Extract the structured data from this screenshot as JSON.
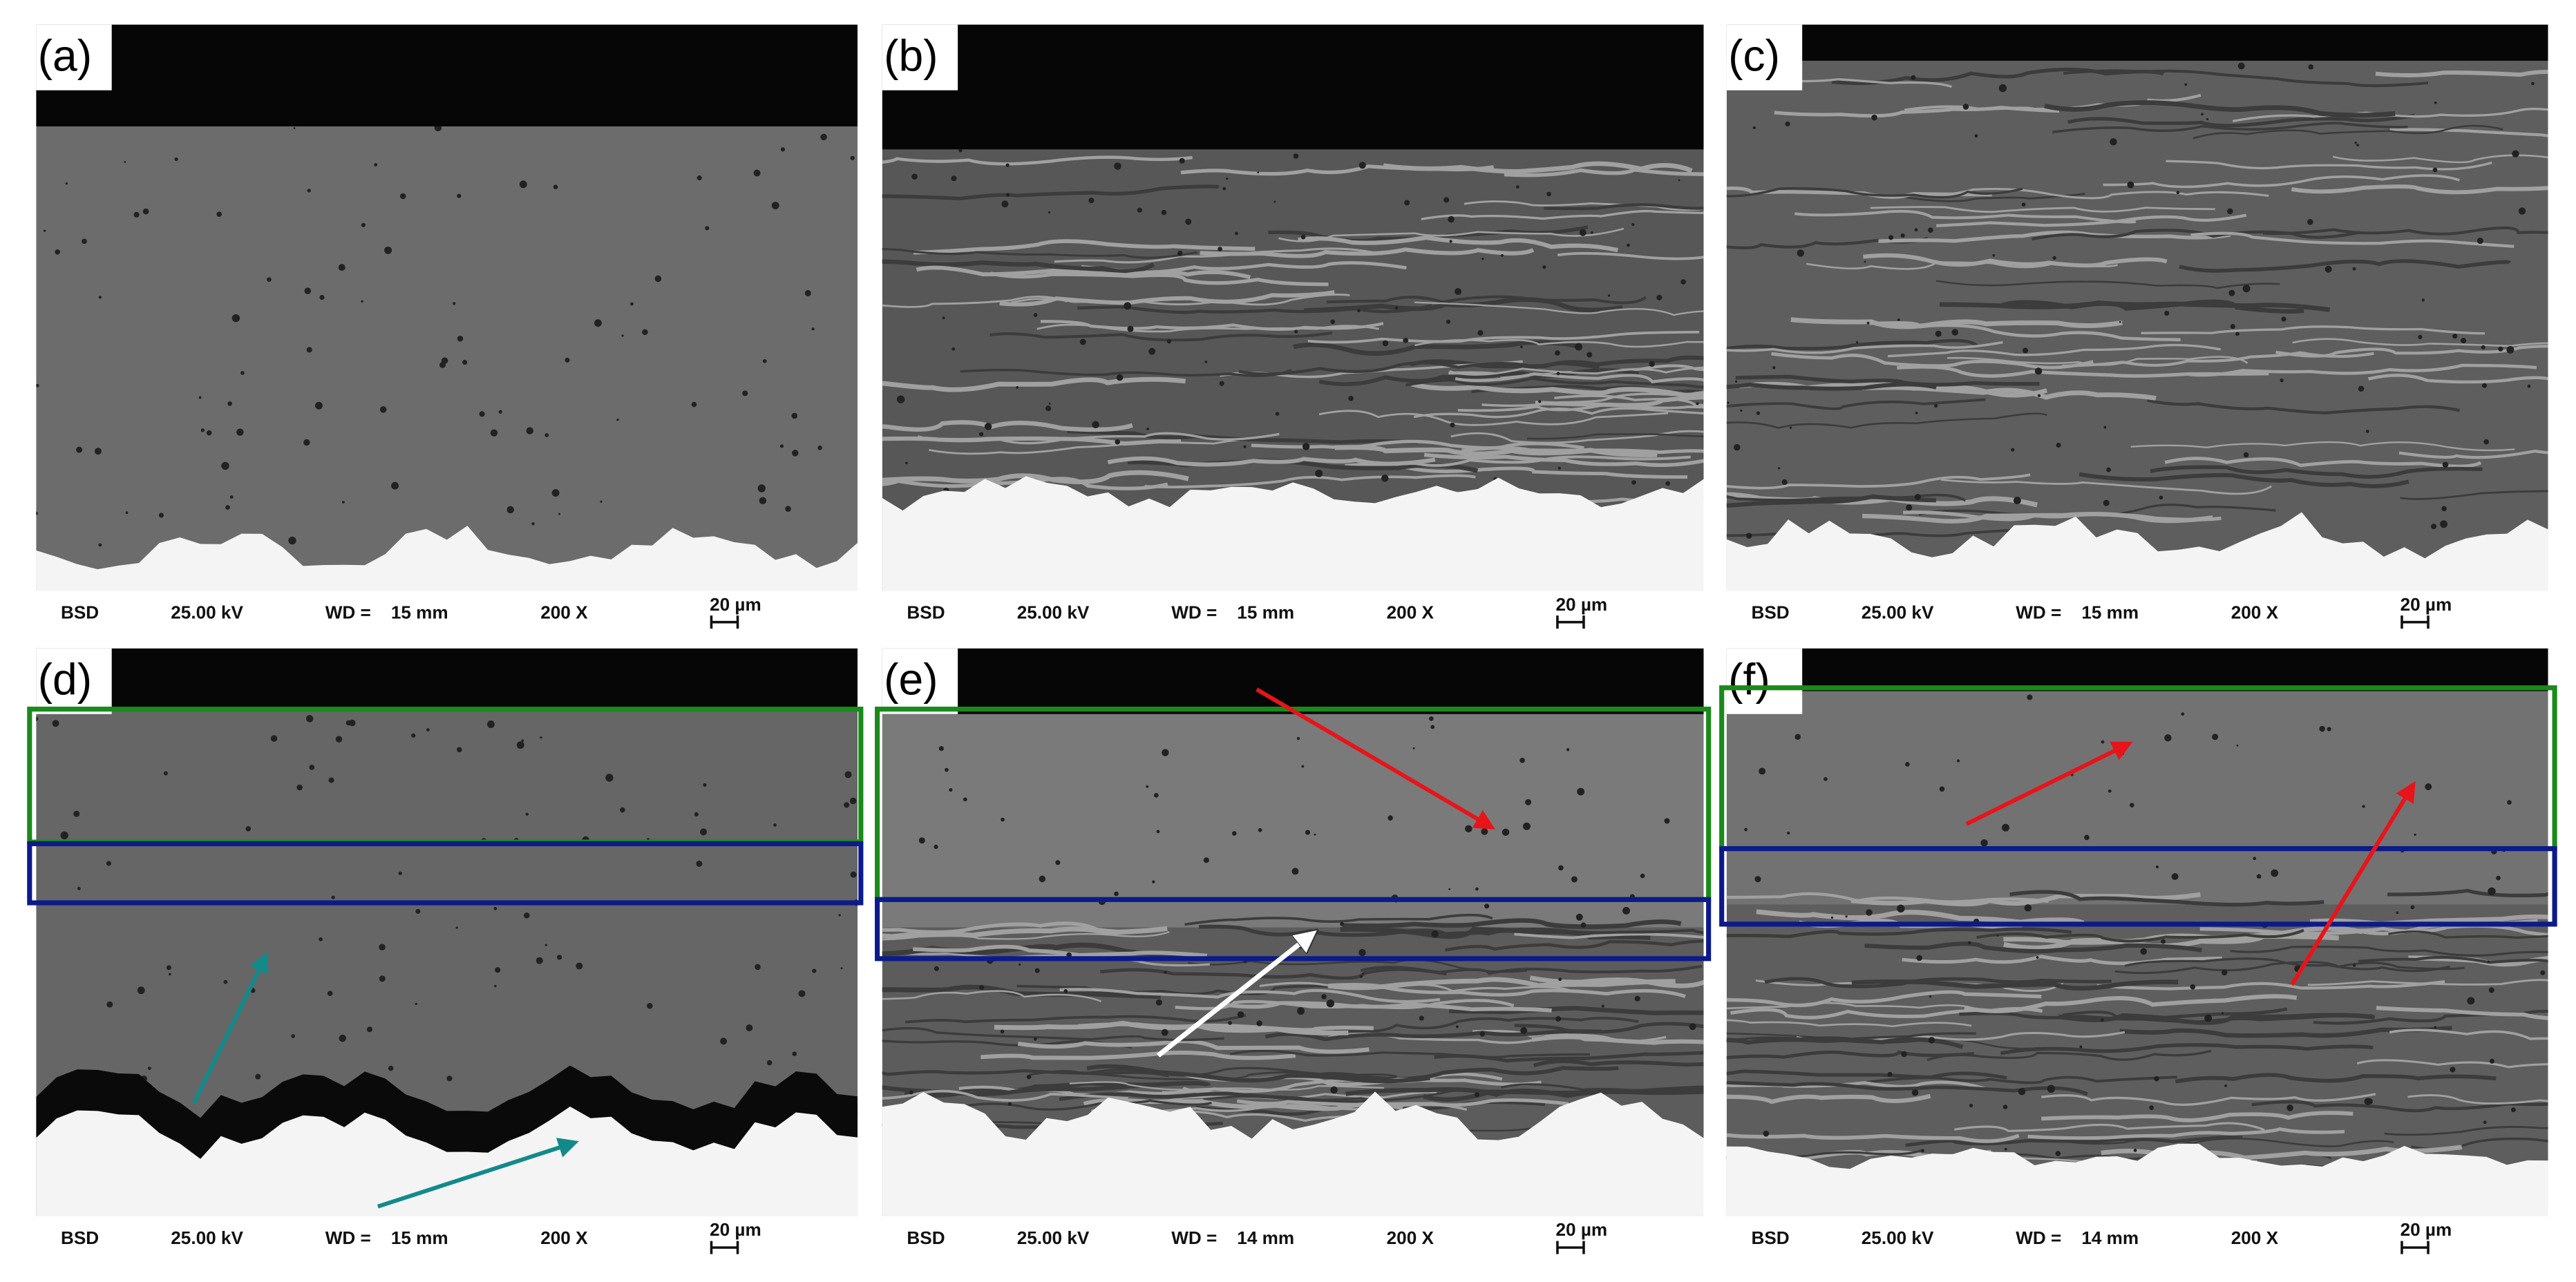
{
  "panels": [
    {
      "label": "(a)",
      "detector": "BSD",
      "voltage": "25.00 kV",
      "wd_label": "WD =",
      "wd": "15 mm",
      "magnification": "200 X",
      "scale_bar": "20 µm"
    },
    {
      "label": "(b)",
      "detector": "BSD",
      "voltage": "25.00 kV",
      "wd_label": "WD =",
      "wd": "15 mm",
      "magnification": "200 X",
      "scale_bar": "20 µm"
    },
    {
      "label": "(c)",
      "detector": "BSD",
      "voltage": "25.00 kV",
      "wd_label": "WD =",
      "wd": "15 mm",
      "magnification": "200 X",
      "scale_bar": "20 µm"
    },
    {
      "label": "(d)",
      "detector": "BSD",
      "voltage": "25.00 kV",
      "wd_label": "WD =",
      "wd": "15 mm",
      "magnification": "200 X",
      "scale_bar": "20 µm"
    },
    {
      "label": "(e)",
      "detector": "BSD",
      "voltage": "25.00 kV",
      "wd_label": "WD =",
      "wd": "14 mm",
      "magnification": "200 X",
      "scale_bar": "20 µm"
    },
    {
      "label": "(f)",
      "detector": "BSD",
      "voltage": "25.00 kV",
      "wd_label": "WD =",
      "wd": "14 mm",
      "magnification": "200 X",
      "scale_bar": "20 µm"
    }
  ]
}
